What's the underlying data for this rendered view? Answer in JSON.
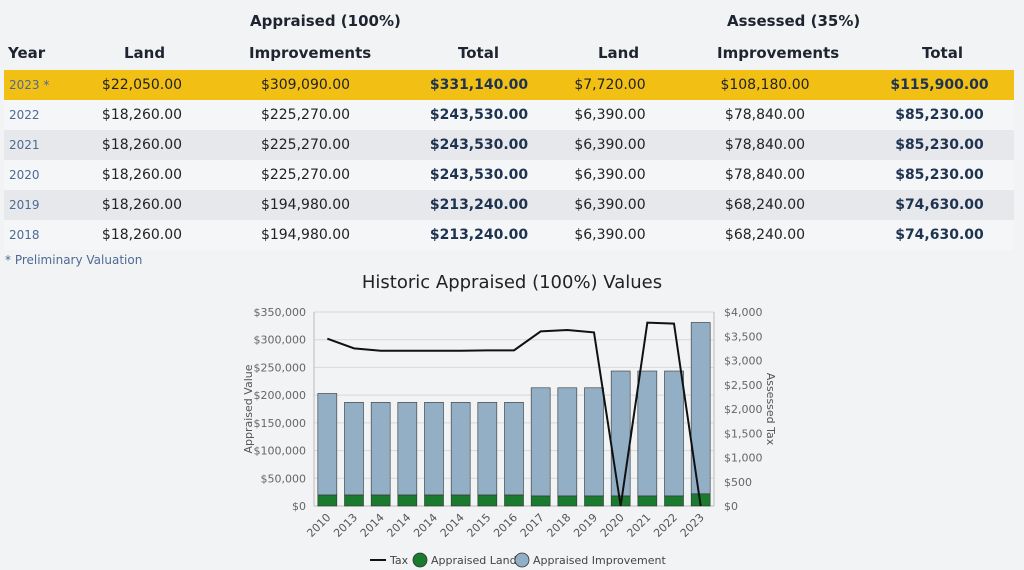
{
  "headers": {
    "appraised_group": "Appraised (100%)",
    "assessed_group": "Assessed (35%)",
    "year": "Year",
    "land": "Land",
    "improvements": "Improvements",
    "total": "Total"
  },
  "rows": [
    {
      "year": "2023 *",
      "app_land": "$22,050.00",
      "app_impr": "$309,090.00",
      "app_total": "$331,140.00",
      "ass_land": "$7,720.00",
      "ass_impr": "$108,180.00",
      "ass_total": "$115,900.00"
    },
    {
      "year": "2022",
      "app_land": "$18,260.00",
      "app_impr": "$225,270.00",
      "app_total": "$243,530.00",
      "ass_land": "$6,390.00",
      "ass_impr": "$78,840.00",
      "ass_total": "$85,230.00"
    },
    {
      "year": "2021",
      "app_land": "$18,260.00",
      "app_impr": "$225,270.00",
      "app_total": "$243,530.00",
      "ass_land": "$6,390.00",
      "ass_impr": "$78,840.00",
      "ass_total": "$85,230.00"
    },
    {
      "year": "2020",
      "app_land": "$18,260.00",
      "app_impr": "$225,270.00",
      "app_total": "$243,530.00",
      "ass_land": "$6,390.00",
      "ass_impr": "$78,840.00",
      "ass_total": "$85,230.00"
    },
    {
      "year": "2019",
      "app_land": "$18,260.00",
      "app_impr": "$194,980.00",
      "app_total": "$213,240.00",
      "ass_land": "$6,390.00",
      "ass_impr": "$68,240.00",
      "ass_total": "$74,630.00"
    },
    {
      "year": "2018",
      "app_land": "$18,260.00",
      "app_impr": "$194,980.00",
      "app_total": "$213,240.00",
      "ass_land": "$6,390.00",
      "ass_impr": "$68,240.00",
      "ass_total": "$74,630.00"
    }
  ],
  "footnote": "* Preliminary Valuation",
  "colors": {
    "highlight": "#f2c014",
    "land": "#1a7a2e",
    "improvement": "#93afc6",
    "tax_line": "#111111",
    "year_link": "#4d6a94"
  },
  "chart_data": {
    "type": "bar",
    "title": "Historic Appraised (100%) Values",
    "ylabel": "Appraised Value",
    "y2label": "Assessed Tax",
    "categories": [
      "2010",
      "2013",
      "2014",
      "2014",
      "2014",
      "2014",
      "2015",
      "2016",
      "2017",
      "2018",
      "2019",
      "2020",
      "2021",
      "2022",
      "2023"
    ],
    "ylim": [
      0,
      350000
    ],
    "y2lim": [
      0,
      4000
    ],
    "yticks": [
      "$0",
      "$50,000",
      "$100,000",
      "$150,000",
      "$200,000",
      "$250,000",
      "$300,000",
      "$350,000"
    ],
    "y2ticks": [
      "$0",
      "$500",
      "$1,000",
      "$1,500",
      "$2,000",
      "$2,500",
      "$3,000",
      "$3,500",
      "$4,000"
    ],
    "stacked": true,
    "series": [
      {
        "name": "Tax",
        "kind": "line",
        "axis": "right",
        "values": [
          3450,
          3250,
          3200,
          3200,
          3200,
          3200,
          3210,
          3210,
          3600,
          3630,
          3580,
          0,
          3780,
          3760,
          0
        ]
      },
      {
        "name": "Appraised Land",
        "kind": "bar",
        "axis": "left",
        "values": [
          20000,
          20000,
          20000,
          20000,
          20000,
          20000,
          20000,
          20000,
          18260,
          18260,
          18260,
          18260,
          18260,
          18260,
          22050
        ]
      },
      {
        "name": "Appraised Improvement",
        "kind": "bar",
        "axis": "left",
        "values": [
          183000,
          167000,
          167000,
          167000,
          167000,
          167000,
          167000,
          167000,
          194980,
          194980,
          194980,
          225270,
          225270,
          225270,
          309090
        ]
      }
    ],
    "legend_position": "bottom",
    "grid": true
  }
}
